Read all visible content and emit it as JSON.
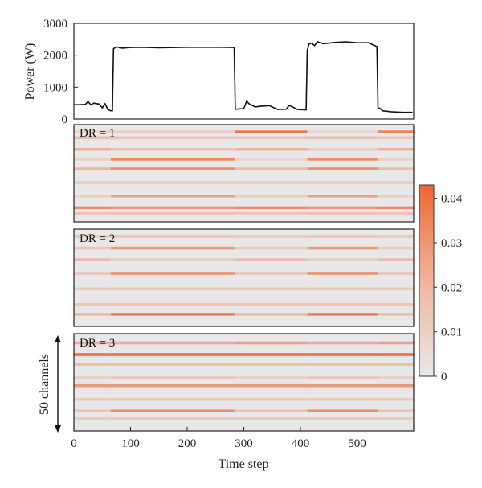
{
  "chart_data": [
    {
      "type": "line",
      "ylabel": "Power (W)",
      "xlim": [
        0,
        600
      ],
      "ylim": [
        0,
        3000
      ],
      "y_ticks": [
        0,
        1000,
        2000,
        3000
      ],
      "series": [
        {
          "x": [
            0,
            10,
            20,
            25,
            30,
            35,
            45,
            50,
            55,
            60,
            65,
            68,
            70,
            75,
            85,
            100,
            120,
            150,
            180,
            200,
            230,
            260,
            283,
            285,
            287,
            300,
            305,
            310,
            320,
            330,
            345,
            360,
            375,
            380,
            395,
            410,
            412,
            415,
            420,
            425,
            430,
            440,
            460,
            480,
            500,
            520,
            535,
            537,
            540,
            545,
            560,
            580,
            598
          ],
          "y": [
            450,
            450,
            460,
            550,
            440,
            500,
            470,
            350,
            480,
            300,
            260,
            260,
            2200,
            2260,
            2220,
            2240,
            2250,
            2230,
            2240,
            2250,
            2250,
            2250,
            2240,
            310,
            310,
            330,
            560,
            470,
            380,
            400,
            420,
            300,
            310,
            430,
            300,
            290,
            2150,
            2350,
            2380,
            2300,
            2420,
            2360,
            2400,
            2420,
            2390,
            2390,
            2270,
            330,
            340,
            260,
            230,
            210,
            210
          ]
        }
      ]
    },
    {
      "type": "heatmap",
      "panel_label": "DR = 1",
      "rows": 50,
      "segment_bounds": [
        0,
        65,
        285,
        412,
        537,
        600
      ],
      "channels": [
        {
          "row": 3,
          "values": [
            0.008,
            0.008,
            0.038,
            0.006,
            0.034
          ]
        },
        {
          "row": 6,
          "values": [
            0.014,
            0.012,
            0.012,
            0.014,
            0.012
          ]
        },
        {
          "row": 12,
          "values": [
            0.018,
            0.012,
            0.018,
            0.01,
            0.018
          ]
        },
        {
          "row": 17,
          "values": [
            0.008,
            0.032,
            0.006,
            0.03,
            0.008
          ]
        },
        {
          "row": 22,
          "values": [
            0.016,
            0.03,
            0.014,
            0.03,
            0.014
          ]
        },
        {
          "row": 29,
          "values": [
            0.01,
            0.01,
            0.01,
            0.01,
            0.01
          ]
        },
        {
          "row": 36,
          "values": [
            0.008,
            0.022,
            0.008,
            0.022,
            0.008
          ]
        },
        {
          "row": 42,
          "values": [
            0.03,
            0.026,
            0.03,
            0.026,
            0.03
          ]
        },
        {
          "row": 45,
          "values": [
            0.012,
            0.012,
            0.012,
            0.012,
            0.012
          ]
        }
      ]
    },
    {
      "type": "heatmap",
      "panel_label": "DR = 2",
      "rows": 50,
      "segment_bounds": [
        0,
        65,
        285,
        412,
        537,
        600
      ],
      "channels": [
        {
          "row": 3,
          "values": [
            0.01,
            0.012,
            0.01,
            0.012,
            0.01
          ]
        },
        {
          "row": 9,
          "values": [
            0.012,
            0.026,
            0.01,
            0.026,
            0.01
          ]
        },
        {
          "row": 15,
          "values": [
            0.016,
            0.01,
            0.016,
            0.01,
            0.016
          ]
        },
        {
          "row": 22,
          "values": [
            0.012,
            0.03,
            0.012,
            0.03,
            0.012
          ]
        },
        {
          "row": 30,
          "values": [
            0.01,
            0.01,
            0.01,
            0.01,
            0.01
          ]
        },
        {
          "row": 38,
          "values": [
            0.012,
            0.012,
            0.012,
            0.012,
            0.012
          ]
        },
        {
          "row": 43,
          "values": [
            0.016,
            0.034,
            0.014,
            0.034,
            0.014
          ]
        }
      ]
    },
    {
      "type": "heatmap",
      "panel_label": "DR = 3",
      "rows": 50,
      "segment_bounds": [
        0,
        65,
        285,
        412,
        537,
        600
      ],
      "channels": [
        {
          "row": 4,
          "values": [
            0.02,
            0.02,
            0.024,
            0.02,
            0.024
          ]
        },
        {
          "row": 10,
          "values": [
            0.04,
            0.04,
            0.04,
            0.04,
            0.04
          ]
        },
        {
          "row": 15,
          "values": [
            0.014,
            0.014,
            0.014,
            0.014,
            0.014
          ]
        },
        {
          "row": 22,
          "values": [
            0.008,
            0.012,
            0.008,
            0.012,
            0.008
          ]
        },
        {
          "row": 26,
          "values": [
            0.026,
            0.026,
            0.026,
            0.026,
            0.026
          ]
        },
        {
          "row": 33,
          "values": [
            0.01,
            0.01,
            0.01,
            0.01,
            0.01
          ]
        },
        {
          "row": 39,
          "values": [
            0.012,
            0.03,
            0.012,
            0.03,
            0.012
          ]
        },
        {
          "row": 43,
          "values": [
            0.01,
            0.01,
            0.01,
            0.01,
            0.01
          ]
        }
      ]
    }
  ],
  "x_axis": {
    "label": "Time step",
    "ticks": [
      0,
      100,
      200,
      300,
      400,
      500
    ],
    "xlim": [
      0,
      600
    ]
  },
  "colorbar": {
    "ticks": [
      0,
      0.01,
      0.02,
      0.03,
      0.04
    ],
    "tick_labels": [
      "0",
      "0.01",
      "0.02",
      "0.03",
      "0.04"
    ],
    "range": [
      0,
      0.043
    ],
    "low_color": "#e8e8e8",
    "high_color": "#ee6633"
  },
  "channels_annotation": "50 channels",
  "colors": {
    "line": "#111111",
    "background": "#e8e8e8",
    "accent": "#ee6633"
  }
}
